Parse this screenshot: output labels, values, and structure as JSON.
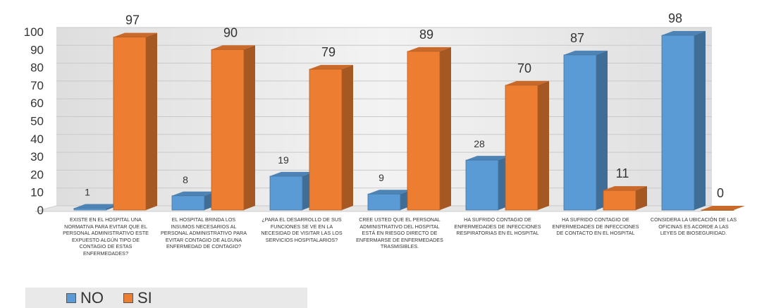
{
  "chart_data": {
    "type": "bar",
    "categories": [
      "EXISTE EN EL HOSPITAL UNA NORMATIVA PARA EVITAR QUE EL PERSONAL ADMINISTRATIVO ESTE EXPUESTO ALGÚN TIPO DE CONTAGIO DE ESTAS ENFERMEDADES?",
      "EL HOSPITAL BRINDA LOS INSUMOS NECESARIOS AL PERSONAL ADMINISTRATIVO PARA EVITAR CONTAGIO DE ALGUNA ENFERMEDAD DE CONTAGIO?",
      "¿PARA EL DESARROLLO DE SUS FUNCIONES SE VE EN LA NECESIDAD DE VISITAR LAS LOS SERVICIOS HOSPITALARIOS?",
      "CREE USTED QUE EL PERSONAL ADMINISTRATIVO DEL HOSPITAL ESTÁ EN RIESGO DIRECTO DE ENFERMARSE DE ENFERMEDADES TRASMISIBLES.",
      "HA SUFRIDO CONTAGIO DE ENFERMEDADES DE INFECCIONES RESPIRATORIAS EN EL HOSPITAL",
      "HA SUFRIDO CONTAGIO DE ENFERMEDADES DE INFECCIONES DE CONTACTO EN EL HOSPITAL",
      "CONSIDERA LA UBICACIÓN DE LAS OFICINAS ES ACORDE A LAS LEYES DE BIOSEGURIDAD."
    ],
    "series": [
      {
        "name": "NO",
        "values": [
          1,
          8,
          19,
          9,
          28,
          87,
          98
        ],
        "color": "#5b9bd5"
      },
      {
        "name": "SI",
        "values": [
          97,
          90,
          79,
          89,
          70,
          11,
          0
        ],
        "color": "#ed7d31"
      }
    ],
    "yticks": [
      "0",
      "10",
      "20",
      "30",
      "40",
      "50",
      "60",
      "70",
      "80",
      "90",
      "100"
    ],
    "ylim": [
      0,
      100
    ],
    "three_d": true,
    "grid": true,
    "legend_position": "bottom-left"
  }
}
